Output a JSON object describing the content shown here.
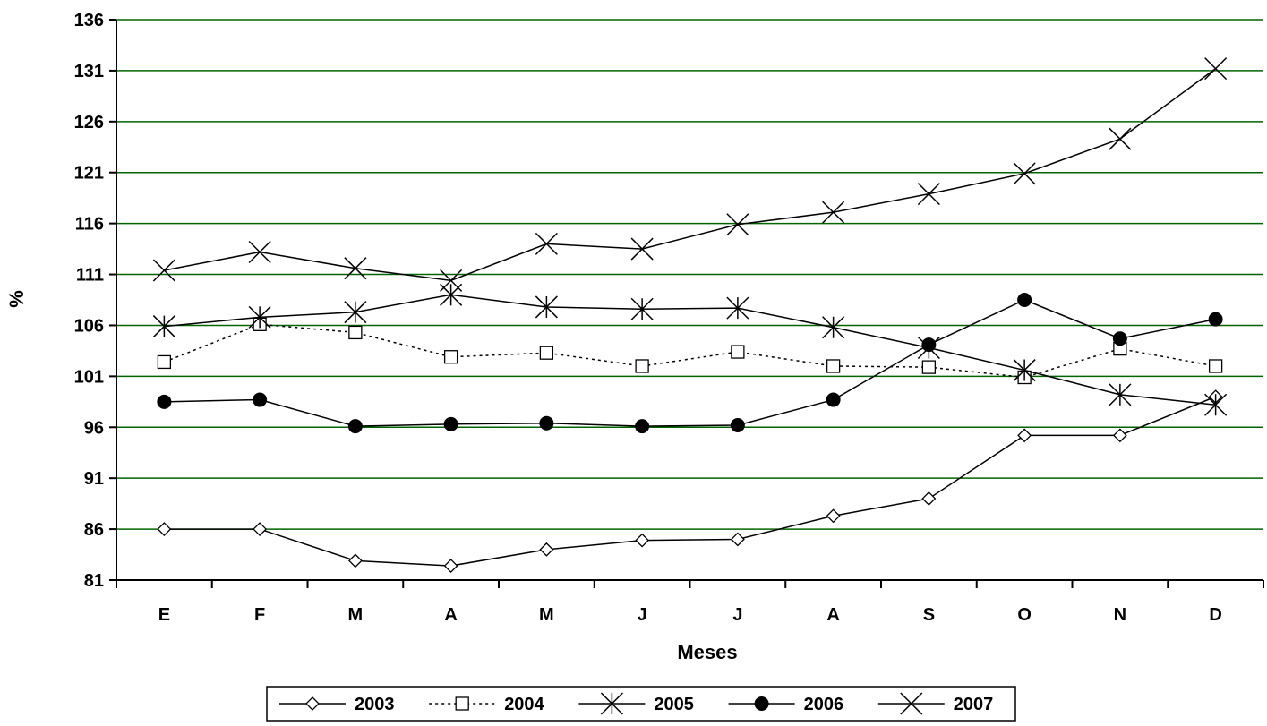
{
  "chart_data": {
    "type": "line",
    "xlabel": "Meses",
    "ylabel": "%",
    "categories": [
      "E",
      "F",
      "M",
      "A",
      "M",
      "J",
      "J",
      "A",
      "S",
      "O",
      "N",
      "D"
    ],
    "ylim": [
      81,
      136
    ],
    "yticks": [
      81,
      86,
      91,
      96,
      101,
      106,
      111,
      116,
      121,
      126,
      131,
      136
    ],
    "grid": true,
    "grid_color": "#006400",
    "legend_position": "bottom",
    "series": [
      {
        "name": "2003",
        "marker": "diamond-open",
        "line": "solid",
        "values": [
          86.0,
          86.0,
          82.9,
          82.4,
          84.0,
          84.9,
          85.0,
          87.3,
          89.0,
          95.2,
          95.2,
          99.0
        ]
      },
      {
        "name": "2004",
        "marker": "square-open",
        "line": "dotted",
        "values": [
          102.4,
          106.1,
          105.3,
          102.9,
          103.3,
          102.0,
          103.4,
          102.0,
          101.9,
          100.9,
          103.7,
          102.0
        ]
      },
      {
        "name": "2005",
        "marker": "star",
        "line": "solid",
        "values": [
          105.9,
          106.8,
          107.3,
          109.0,
          107.8,
          107.6,
          107.7,
          105.8,
          103.8,
          101.6,
          99.2,
          98.2
        ]
      },
      {
        "name": "2006",
        "marker": "circle-filled",
        "line": "solid",
        "values": [
          98.5,
          98.7,
          96.1,
          96.3,
          96.4,
          96.1,
          96.2,
          98.7,
          104.1,
          108.5,
          104.7,
          106.6
        ]
      },
      {
        "name": "2007",
        "marker": "x",
        "line": "solid",
        "values": [
          111.4,
          113.2,
          111.6,
          110.4,
          114.0,
          113.5,
          115.9,
          117.1,
          118.9,
          120.9,
          124.3,
          131.2
        ]
      }
    ]
  }
}
